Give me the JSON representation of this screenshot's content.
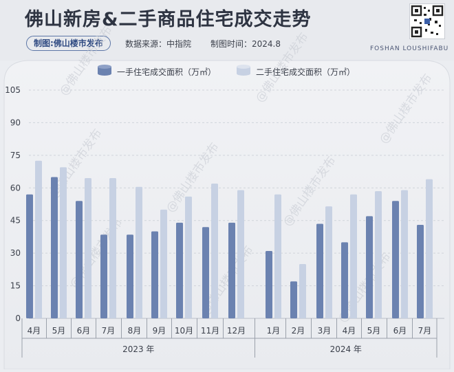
{
  "header": {
    "title": "佛山新房&二手商品住宅成交走势",
    "source_pill": "制图:佛山楼市发布",
    "data_source": "数据来源：中指院",
    "chart_time": "制图时间：2024.8",
    "brand_en": "FOSHAN LOUSHIFABU"
  },
  "watermark": "@佛山楼市发布",
  "colors": {
    "series_new": "#6b82b0",
    "series_second": "#c7d1e3",
    "text": "#3a3f4a"
  },
  "chart_data": {
    "type": "bar",
    "ylim": [
      0,
      105
    ],
    "yticks": [
      "0",
      "15",
      "30",
      "45",
      "60",
      "75",
      "90",
      "105"
    ],
    "grid": true,
    "legend_position": "top",
    "categories": [
      "4月",
      "5月",
      "6月",
      "7月",
      "8月",
      "9月",
      "10月",
      "11月",
      "12月",
      "1月",
      "2月",
      "3月",
      "4月",
      "5月",
      "6月",
      "7月"
    ],
    "year_groups": [
      {
        "label": "2023 年",
        "count": 9
      },
      {
        "label": "2024 年",
        "count": 7
      }
    ],
    "series": [
      {
        "name": "一手住宅成交面积（万㎡）",
        "values": [
          57,
          65,
          54,
          38.5,
          38.5,
          40,
          44,
          42,
          44,
          31,
          17,
          43.5,
          35,
          47,
          54,
          43
        ]
      },
      {
        "name": "二手住宅成交面积（万㎡）",
        "values": [
          72.5,
          69.5,
          64.5,
          64.5,
          60.5,
          50,
          56,
          62,
          59,
          57,
          25,
          51.5,
          57,
          58.5,
          59,
          64
        ]
      }
    ]
  }
}
